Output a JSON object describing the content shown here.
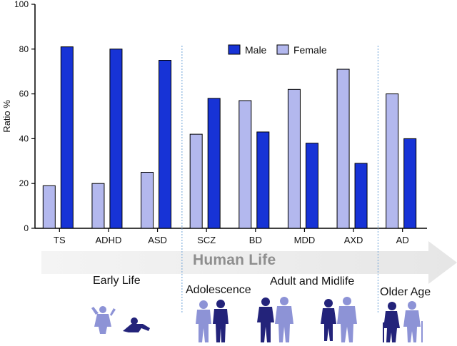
{
  "chart_data": {
    "type": "bar",
    "ylabel": "Ratio %",
    "ylim": [
      0,
      100
    ],
    "yticks": [
      0,
      20,
      40,
      60,
      80,
      100
    ],
    "categories": [
      "TS",
      "ADHD",
      "ASD",
      "SCZ",
      "BD",
      "MDD",
      "AXD",
      "AD"
    ],
    "series": [
      {
        "name": "Female",
        "color": "#b3b8ee",
        "values": [
          19,
          20,
          25,
          42,
          57,
          62,
          71,
          60
        ]
      },
      {
        "name": "Male",
        "color": "#1733d6",
        "values": [
          81,
          80,
          75,
          58,
          43,
          38,
          29,
          40
        ]
      }
    ],
    "legend": {
      "placement": "top-center",
      "order": [
        "Male",
        "Female"
      ]
    },
    "grid": false
  },
  "annotations": {
    "arrow_label": "Human Life",
    "stages": [
      "Early Life",
      "Adolescence",
      "Adult and Midlife",
      "Older Age"
    ]
  },
  "icons": [
    "child-silhouette-icon",
    "teen-silhouette-icon",
    "adult-silhouette-icon",
    "elderly-silhouette-icon"
  ]
}
